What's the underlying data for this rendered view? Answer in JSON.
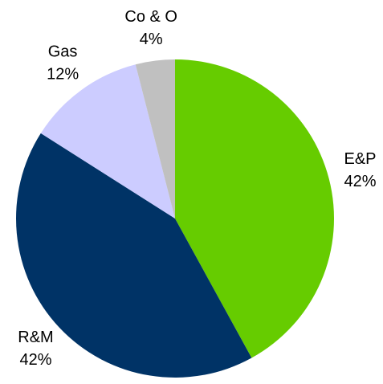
{
  "chart_data": {
    "type": "pie",
    "categories": [
      "E&P",
      "R&M",
      "Gas",
      "Co & O"
    ],
    "values": [
      42,
      42,
      12,
      4
    ],
    "value_labels": [
      "42%",
      "42%",
      "12%",
      "4%"
    ],
    "colors": [
      "#66cc00",
      "#003366",
      "#ccccff",
      "#c0c0c0"
    ]
  }
}
